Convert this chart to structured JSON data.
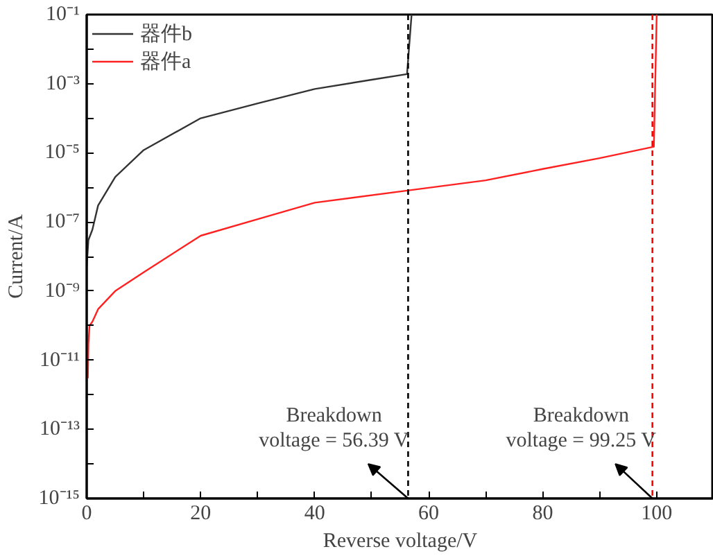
{
  "chart_data": {
    "type": "line",
    "xlabel": "Reverse voltage/V",
    "ylabel": "Current/A",
    "log": "y",
    "legend": "top left",
    "grid": false,
    "line_style": "solid",
    "marker": "none",
    "xlim": [
      0,
      110
    ],
    "ylim": [
      1e-15,
      0.1
    ],
    "xticks": [
      0,
      {
        "value": 10,
        "label": null
      },
      20,
      {
        "value": 30,
        "label": null
      },
      40,
      {
        "value": 50,
        "label": null
      },
      60,
      {
        "value": 70,
        "label": null
      },
      80,
      {
        "value": 90,
        "label": null
      },
      100
    ],
    "yticks": [
      {
        "value": 1e-15,
        "label": "10⁻¹⁵"
      },
      {
        "value": 1e-14,
        "label": null
      },
      {
        "value": 1e-13,
        "label": "10⁻¹³"
      },
      {
        "value": 1e-12,
        "label": null
      },
      {
        "value": 1e-11,
        "label": "10⁻¹¹"
      },
      {
        "value": 1e-10,
        "label": null
      },
      {
        "value": 1e-09,
        "label": "10⁻⁹"
      },
      {
        "value": 1e-08,
        "label": null
      },
      {
        "value": 1e-07,
        "label": "10⁻⁷"
      },
      {
        "value": 1e-06,
        "label": null
      },
      {
        "value": 1e-05,
        "label": "10⁻⁵"
      },
      {
        "value": 0.0001,
        "label": null
      },
      {
        "value": 0.001,
        "label": "10⁻³"
      },
      {
        "value": 0.01,
        "label": null
      },
      {
        "value": 0.1,
        "label": "10⁻¹"
      }
    ],
    "series": [
      {
        "name": "器件b",
        "color": "#333333",
        "x": [
          0,
          0.3,
          1,
          2,
          5,
          10,
          20,
          30,
          40,
          50,
          56.2,
          57
        ],
        "values": [
          5e-09,
          3e-08,
          6e-08,
          3e-07,
          2e-06,
          1.2e-05,
          0.0001,
          0.00027,
          0.0007,
          0.0013,
          0.0019,
          0.1
        ]
      },
      {
        "name": "器件a",
        "color": "#ff2020",
        "x": [
          0.2,
          0.3,
          0.5,
          1,
          2,
          5,
          10,
          20,
          30,
          40,
          56,
          70,
          80,
          90,
          99.5,
          100
        ],
        "values": [
          3e-12,
          3e-11,
          1e-10,
          1.3e-10,
          3e-10,
          1e-09,
          3.5e-09,
          4e-08,
          1.2e-07,
          3.6e-07,
          8e-07,
          1.6e-06,
          3.4e-06,
          7e-06,
          1.5e-05,
          0.1
        ]
      }
    ],
    "ref_lines": [
      {
        "axis": "x",
        "value": 56.39,
        "color": "#000000",
        "line_style": "dashed"
      },
      {
        "axis": "x",
        "value": 99.25,
        "color": "#ff0000",
        "line_style": "dashed"
      }
    ],
    "annotations": [
      {
        "text": "Breakdown\nvoltage = 56.39 V",
        "x": 56.39,
        "y": 1e-15
      },
      {
        "text": "Breakdown\nvoltage = 99.25 V",
        "x": 99.25,
        "y": 1e-15
      }
    ]
  }
}
